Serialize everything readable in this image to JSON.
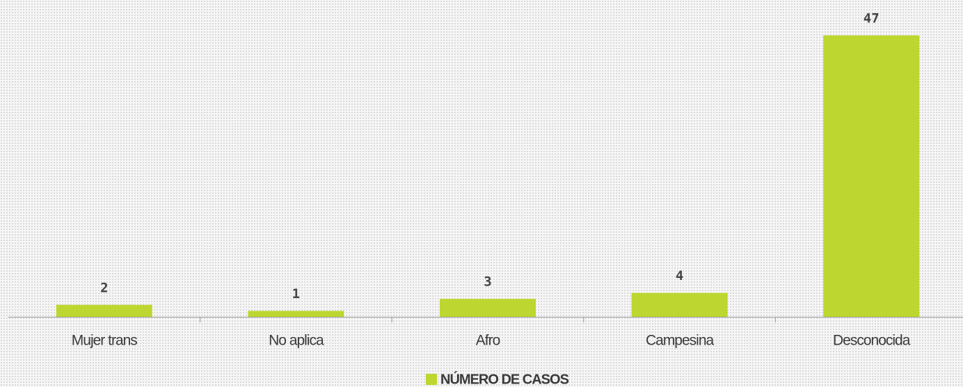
{
  "chart_data": {
    "type": "bar",
    "categories": [
      "Mujer trans",
      "No aplica",
      "Afro",
      "Campesina",
      "Desconocida"
    ],
    "series": [
      {
        "name": "NÚMERO DE CASOS",
        "color": "#bed630",
        "values": [
          2,
          1,
          3,
          4,
          47
        ]
      }
    ],
    "ylim": [
      0,
      47
    ],
    "legend": "bottom"
  }
}
